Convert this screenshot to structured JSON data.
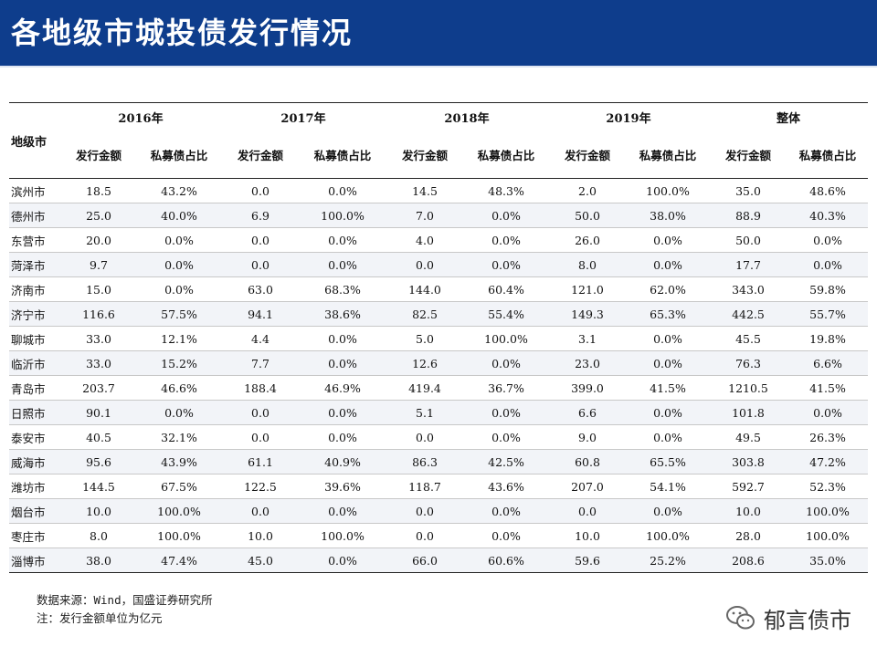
{
  "title": "各地级市城投债发行情况",
  "table": {
    "city_header": "地级市",
    "year_headers": [
      "2016年",
      "2017年",
      "2018年",
      "2019年",
      "整体"
    ],
    "sub_headers": [
      "发行金额",
      "私募债占比",
      "发行金额",
      "私募债占比",
      "发行金额",
      "私募债占比",
      "发行金额",
      "私募债占比",
      "发行金额",
      "私募债占比"
    ],
    "rows": [
      [
        "滨州市",
        "18.5",
        "43.2%",
        "0.0",
        "0.0%",
        "14.5",
        "48.3%",
        "2.0",
        "100.0%",
        "35.0",
        "48.6%"
      ],
      [
        "德州市",
        "25.0",
        "40.0%",
        "6.9",
        "100.0%",
        "7.0",
        "0.0%",
        "50.0",
        "38.0%",
        "88.9",
        "40.3%"
      ],
      [
        "东营市",
        "20.0",
        "0.0%",
        "0.0",
        "0.0%",
        "4.0",
        "0.0%",
        "26.0",
        "0.0%",
        "50.0",
        "0.0%"
      ],
      [
        "菏泽市",
        "9.7",
        "0.0%",
        "0.0",
        "0.0%",
        "0.0",
        "0.0%",
        "8.0",
        "0.0%",
        "17.7",
        "0.0%"
      ],
      [
        "济南市",
        "15.0",
        "0.0%",
        "63.0",
        "68.3%",
        "144.0",
        "60.4%",
        "121.0",
        "62.0%",
        "343.0",
        "59.8%"
      ],
      [
        "济宁市",
        "116.6",
        "57.5%",
        "94.1",
        "38.6%",
        "82.5",
        "55.4%",
        "149.3",
        "65.3%",
        "442.5",
        "55.7%"
      ],
      [
        "聊城市",
        "33.0",
        "12.1%",
        "4.4",
        "0.0%",
        "5.0",
        "100.0%",
        "3.1",
        "0.0%",
        "45.5",
        "19.8%"
      ],
      [
        "临沂市",
        "33.0",
        "15.2%",
        "7.7",
        "0.0%",
        "12.6",
        "0.0%",
        "23.0",
        "0.0%",
        "76.3",
        "6.6%"
      ],
      [
        "青岛市",
        "203.7",
        "46.6%",
        "188.4",
        "46.9%",
        "419.4",
        "36.7%",
        "399.0",
        "41.5%",
        "1210.5",
        "41.5%"
      ],
      [
        "日照市",
        "90.1",
        "0.0%",
        "0.0",
        "0.0%",
        "5.1",
        "0.0%",
        "6.6",
        "0.0%",
        "101.8",
        "0.0%"
      ],
      [
        "泰安市",
        "40.5",
        "32.1%",
        "0.0",
        "0.0%",
        "0.0",
        "0.0%",
        "9.0",
        "0.0%",
        "49.5",
        "26.3%"
      ],
      [
        "威海市",
        "95.6",
        "43.9%",
        "61.1",
        "40.9%",
        "86.3",
        "42.5%",
        "60.8",
        "65.5%",
        "303.8",
        "47.2%"
      ],
      [
        "潍坊市",
        "144.5",
        "67.5%",
        "122.5",
        "39.6%",
        "118.7",
        "43.6%",
        "207.0",
        "54.1%",
        "592.7",
        "52.3%"
      ],
      [
        "烟台市",
        "10.0",
        "100.0%",
        "0.0",
        "0.0%",
        "0.0",
        "0.0%",
        "0.0",
        "0.0%",
        "10.0",
        "100.0%"
      ],
      [
        "枣庄市",
        "8.0",
        "100.0%",
        "10.0",
        "100.0%",
        "0.0",
        "0.0%",
        "10.0",
        "100.0%",
        "28.0",
        "100.0%"
      ],
      [
        "淄博市",
        "38.0",
        "47.4%",
        "45.0",
        "0.0%",
        "66.0",
        "60.6%",
        "59.6",
        "25.2%",
        "208.6",
        "35.0%"
      ]
    ]
  },
  "notes": {
    "source": "数据来源：Wind，国盛证券研究所",
    "unit": "注：发行金额单位为亿元"
  },
  "watermark": {
    "icon": "wechat-icon",
    "text": "郁言债市"
  },
  "colors": {
    "title_bar": "#0e3d8c",
    "title_text": "#ffffff"
  }
}
